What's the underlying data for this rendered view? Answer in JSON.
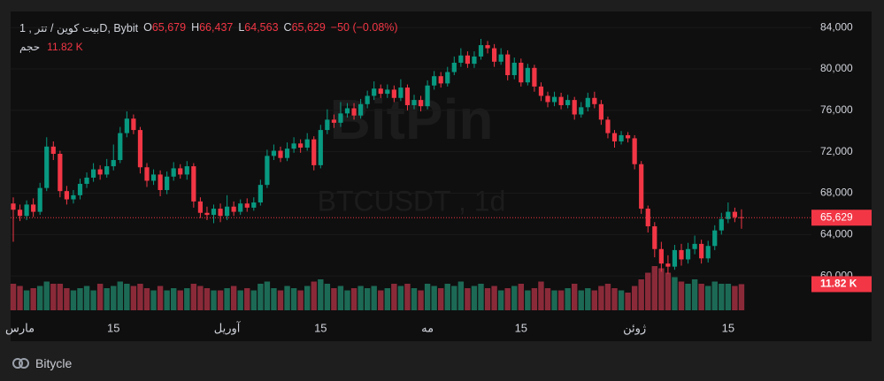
{
  "chart_data": {
    "type": "candlestick",
    "title": "بیت کوین / تتر , 1D, Bybit",
    "legend": [
      {
        "name": "O",
        "label": "65,679"
      },
      {
        "name": "H",
        "label": "66,437"
      },
      {
        "name": "L",
        "label": "64,563"
      },
      {
        "name": "C",
        "label": "65,629"
      }
    ],
    "change_label": "−50 (−0.08%)",
    "volume_title": "حجم",
    "volume_label": "11.82 K",
    "last_price_label": "65,629",
    "watermark": "BitPin",
    "watermark_sub": "BTCUSDT , 1d",
    "up_color": "#089981",
    "down_color": "#f23645",
    "volume_up_color": "#1c6a55",
    "volume_down_color": "#8a2a39",
    "ylim": [
      56600,
      85550
    ],
    "yticks": [
      {
        "value": 60000,
        "label": "60,000"
      },
      {
        "value": 64000,
        "label": "64,000"
      },
      {
        "value": 68000,
        "label": "68,000"
      },
      {
        "value": 72000,
        "label": "72,000"
      },
      {
        "value": 76000,
        "label": "76,000"
      },
      {
        "value": 80000,
        "label": "80,000"
      },
      {
        "value": 84000,
        "label": "84,000"
      }
    ],
    "categories": [
      null,
      "مارس",
      null,
      null,
      null,
      null,
      null,
      null,
      null,
      null,
      null,
      null,
      null,
      null,
      null,
      "15",
      null,
      null,
      null,
      null,
      null,
      null,
      null,
      null,
      null,
      null,
      null,
      null,
      null,
      null,
      null,
      null,
      "آوريل",
      null,
      null,
      null,
      null,
      null,
      null,
      null,
      null,
      null,
      null,
      null,
      null,
      null,
      "15",
      null,
      null,
      null,
      null,
      null,
      null,
      null,
      null,
      null,
      null,
      null,
      null,
      null,
      null,
      null,
      "مه",
      null,
      null,
      null,
      null,
      null,
      null,
      null,
      null,
      null,
      null,
      null,
      null,
      null,
      "15",
      null,
      null,
      null,
      null,
      null,
      null,
      null,
      null,
      null,
      null,
      null,
      null,
      null,
      null,
      null,
      null,
      "ژوئن",
      null,
      null,
      null,
      null,
      null,
      null,
      null,
      null,
      null,
      null,
      null,
      null,
      null,
      "15",
      null,
      null
    ],
    "open": [
      67000,
      66400,
      65800,
      66900,
      66200,
      68500,
      72500,
      71800,
      68200,
      67400,
      67800,
      68900,
      69500,
      70300,
      69800,
      70600,
      71200,
      73800,
      75200,
      74100,
      70500,
      69200,
      69800,
      68300,
      69600,
      70400,
      69800,
      70600,
      67200,
      66100,
      65900,
      66500,
      65800,
      66700,
      66200,
      67000,
      66600,
      67100,
      68800,
      71600,
      72100,
      71400,
      72300,
      72800,
      72400,
      73200,
      70700,
      74100,
      75100,
      74800,
      75700,
      76200,
      75500,
      76600,
      77400,
      78100,
      77600,
      78000,
      77200,
      78200,
      76500,
      77000,
      76400,
      78400,
      79300,
      78600,
      79700,
      80600,
      81300,
      80500,
      81200,
      82300,
      82000,
      80700,
      81400,
      79400,
      80600,
      78700,
      80100,
      78300,
      77400,
      76800,
      77300,
      76500,
      77000,
      75600,
      76300,
      77200,
      76600,
      75100,
      73800,
      73000,
      73600,
      73300,
      70800,
      66500,
      64800,
      62600,
      61200,
      60900,
      62500,
      61600,
      62600,
      63100,
      61700,
      62900,
      64400,
      65500,
      66200,
      65679
    ],
    "high": [
      67600,
      66900,
      67300,
      67500,
      69000,
      73400,
      73000,
      72100,
      68700,
      68300,
      69400,
      70000,
      70900,
      70700,
      71300,
      72700,
      74400,
      75900,
      75600,
      74400,
      70900,
      70300,
      70200,
      70100,
      71000,
      70800,
      71100,
      70900,
      67600,
      66700,
      66900,
      67000,
      67800,
      67200,
      67400,
      67500,
      67600,
      69300,
      72200,
      72700,
      72500,
      72900,
      73400,
      73200,
      73800,
      73500,
      74600,
      76100,
      75600,
      76800,
      76700,
      76700,
      77100,
      77900,
      78800,
      78500,
      78500,
      78400,
      79000,
      78500,
      77500,
      77400,
      78900,
      79800,
      79700,
      80200,
      81200,
      82000,
      81700,
      81700,
      82900,
      82700,
      82400,
      82000,
      81800,
      81100,
      81000,
      80500,
      80400,
      78700,
      77800,
      77800,
      77700,
      77500,
      77300,
      76800,
      77700,
      77800,
      77000,
      75400,
      74100,
      74000,
      73900,
      73600,
      71100,
      66800,
      65200,
      63300,
      62000,
      63000,
      63100,
      63200,
      63900,
      63500,
      63400,
      64900,
      66100,
      67100,
      66600,
      66437
    ],
    "low": [
      63300,
      65300,
      65400,
      65700,
      65900,
      68200,
      71200,
      67600,
      66900,
      67000,
      67400,
      68500,
      69100,
      69300,
      69500,
      70200,
      70900,
      73400,
      73700,
      69900,
      68600,
      68800,
      67700,
      67900,
      69200,
      69400,
      69300,
      66600,
      65600,
      65400,
      65100,
      65200,
      65400,
      65800,
      65900,
      66200,
      66300,
      66800,
      68500,
      71200,
      71000,
      71100,
      71900,
      71900,
      72100,
      70200,
      70400,
      73700,
      74300,
      74400,
      75300,
      75100,
      75200,
      76200,
      77000,
      77200,
      77200,
      76800,
      76900,
      76000,
      76100,
      75900,
      76100,
      78000,
      78200,
      78300,
      79400,
      80200,
      80100,
      80100,
      80900,
      81500,
      80200,
      80400,
      78900,
      79000,
      78300,
      78400,
      77800,
      76900,
      76300,
      76400,
      76100,
      76200,
      75100,
      75300,
      75900,
      76200,
      74600,
      73300,
      72400,
      72700,
      72900,
      70300,
      66000,
      64200,
      61800,
      60400,
      60200,
      60600,
      61000,
      61200,
      62100,
      61200,
      61300,
      62500,
      64000,
      65100,
      65200,
      64563
    ],
    "close": [
      66400,
      65800,
      66900,
      66200,
      68500,
      72500,
      71800,
      68200,
      67400,
      67800,
      68900,
      69500,
      70300,
      69800,
      70600,
      71200,
      73800,
      75200,
      74100,
      70500,
      69200,
      69800,
      68300,
      69600,
      70400,
      69800,
      70600,
      67200,
      66100,
      65900,
      66500,
      65800,
      66700,
      66200,
      67000,
      66600,
      67100,
      68800,
      71600,
      72100,
      71400,
      72300,
      72800,
      72400,
      73200,
      70700,
      74100,
      75100,
      74800,
      75700,
      76200,
      75500,
      76600,
      77400,
      78100,
      77600,
      78000,
      77200,
      78200,
      76500,
      77000,
      76400,
      78400,
      79300,
      78600,
      79700,
      80600,
      81300,
      80500,
      81200,
      82300,
      82000,
      80700,
      81400,
      79400,
      80600,
      78700,
      80100,
      78300,
      77400,
      76800,
      77300,
      76500,
      77000,
      75600,
      76300,
      77200,
      76600,
      75100,
      73800,
      73000,
      73600,
      73300,
      70800,
      66500,
      64800,
      62600,
      61200,
      60900,
      62500,
      61600,
      62600,
      63100,
      61700,
      62900,
      64400,
      65500,
      66200,
      65679,
      65629
    ],
    "volume": [
      12,
      11,
      9,
      10,
      11,
      13,
      12,
      12,
      10,
      9,
      10,
      11,
      9,
      12,
      10,
      11,
      13,
      12,
      11,
      12,
      10,
      9,
      11,
      9,
      10,
      9,
      10,
      12,
      11,
      10,
      9,
      9,
      10,
      11,
      9,
      10,
      9,
      12,
      13,
      10,
      9,
      11,
      10,
      9,
      11,
      13,
      14,
      12,
      10,
      11,
      9,
      10,
      11,
      10,
      11,
      9,
      10,
      12,
      11,
      12,
      10,
      9,
      12,
      11,
      10,
      12,
      11,
      13,
      10,
      11,
      12,
      10,
      11,
      9,
      10,
      11,
      12,
      9,
      10,
      13,
      10,
      9,
      9,
      10,
      12,
      9,
      10,
      9,
      11,
      12,
      10,
      9,
      8,
      11,
      14,
      17,
      20,
      19,
      17,
      15,
      13,
      12,
      14,
      12,
      11,
      13,
      12,
      12,
      11,
      11.82
    ]
  },
  "footer": {
    "brand": "Bitycle"
  }
}
